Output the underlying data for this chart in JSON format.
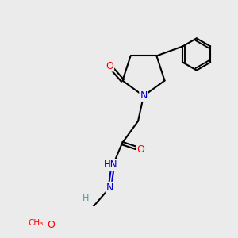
{
  "bg_color": "#ebebeb",
  "bond_color": "#000000",
  "bond_width": 1.5,
  "atom_colors": {
    "O": "#ff0000",
    "N": "#0000cc",
    "C": "#000000",
    "H": "#4a9a9a"
  },
  "font_size": 8.5,
  "fig_size": [
    3.0,
    3.0
  ],
  "dpi": 100
}
